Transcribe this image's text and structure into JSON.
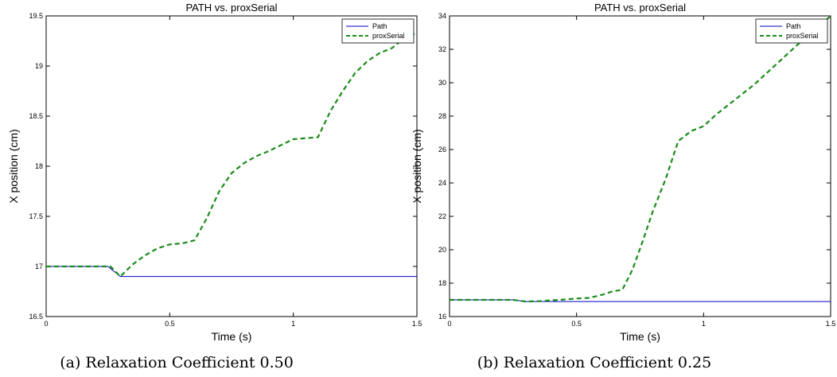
{
  "chart_data": [
    {
      "type": "line",
      "title": "PATH vs. proxSerial",
      "xlabel": "Time (s)",
      "ylabel": "X position (cm)",
      "caption": "(a) Relaxation Coefficient 0.50",
      "xlim": [
        0,
        1.5
      ],
      "ylim": [
        16.5,
        19.5
      ],
      "xticks": [
        0,
        0.5,
        1,
        1.5
      ],
      "xtick_labels": [
        "0",
        "0.5",
        "1",
        "1.5"
      ],
      "yticks": [
        16.5,
        17,
        17.5,
        18,
        18.5,
        19,
        19.5
      ],
      "ytick_labels": [
        "16.5",
        "17",
        "17.5",
        "18",
        "18.5",
        "19",
        "19.5"
      ],
      "grid": false,
      "legend_position": "top-right",
      "series": [
        {
          "name": "Path",
          "color": "#0000cc",
          "style": "solid",
          "x": [
            0,
            0.25,
            0.3,
            1.5
          ],
          "y": [
            17.0,
            17.0,
            16.9,
            16.9
          ]
        },
        {
          "name": "proxSerial",
          "color": "#1a8c1a",
          "style": "dashed",
          "x": [
            0,
            0.26,
            0.3,
            0.35,
            0.4,
            0.45,
            0.5,
            0.55,
            0.6,
            0.65,
            0.7,
            0.75,
            0.8,
            0.85,
            0.9,
            0.95,
            1.0,
            1.05,
            1.1,
            1.15,
            1.2,
            1.25,
            1.3,
            1.35,
            1.4,
            1.45,
            1.5
          ],
          "y": [
            17.0,
            17.0,
            16.9,
            17.02,
            17.11,
            17.18,
            17.22,
            17.23,
            17.26,
            17.48,
            17.75,
            17.93,
            18.03,
            18.1,
            18.15,
            18.21,
            18.27,
            18.28,
            18.29,
            18.55,
            18.75,
            18.93,
            19.05,
            19.13,
            19.18,
            19.28,
            19.33
          ]
        }
      ]
    },
    {
      "type": "line",
      "title": "PATH vs. proxSerial",
      "xlabel": "Time (s)",
      "ylabel": "X position (cm)",
      "caption": "(b) Relaxation Coefficient 0.25",
      "xlim": [
        0,
        1.5
      ],
      "ylim": [
        16,
        34
      ],
      "xticks": [
        0,
        0.5,
        1,
        1.5
      ],
      "xtick_labels": [
        "0",
        "0.5",
        "1",
        "1.5"
      ],
      "yticks": [
        16,
        18,
        20,
        22,
        24,
        26,
        28,
        30,
        32,
        34
      ],
      "ytick_labels": [
        "16",
        "18",
        "20",
        "22",
        "24",
        "26",
        "28",
        "30",
        "32",
        "34"
      ],
      "grid": false,
      "legend_position": "top-right",
      "series": [
        {
          "name": "Path",
          "color": "#0000cc",
          "style": "solid",
          "x": [
            0,
            0.25,
            0.3,
            1.5
          ],
          "y": [
            17.0,
            17.0,
            16.9,
            16.9
          ]
        },
        {
          "name": "proxSerial",
          "color": "#1a8c1a",
          "style": "dashed",
          "x": [
            0,
            0.25,
            0.3,
            0.35,
            0.4,
            0.45,
            0.5,
            0.55,
            0.6,
            0.64,
            0.68,
            0.72,
            0.76,
            0.8,
            0.85,
            0.9,
            0.95,
            1.0,
            1.05,
            1.1,
            1.15,
            1.2,
            1.25,
            1.3,
            1.35,
            1.4,
            1.45,
            1.5
          ],
          "y": [
            17.0,
            17.0,
            16.9,
            16.92,
            16.97,
            17.02,
            17.08,
            17.12,
            17.3,
            17.5,
            17.6,
            18.8,
            20.5,
            22.3,
            24.2,
            26.5,
            27.1,
            27.4,
            28.1,
            28.7,
            29.3,
            29.9,
            30.6,
            31.3,
            32.0,
            32.7,
            33.3,
            34.0
          ]
        }
      ]
    }
  ]
}
